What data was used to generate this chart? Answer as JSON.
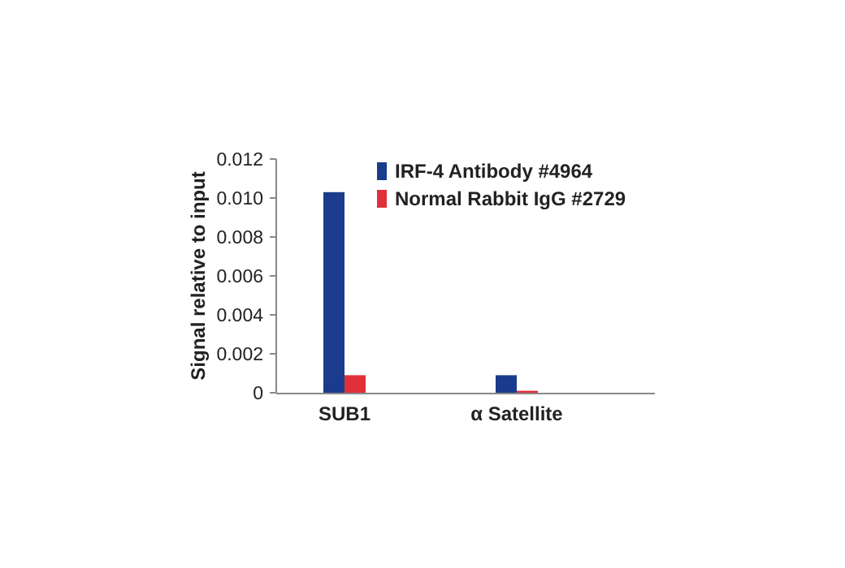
{
  "chart_data": {
    "type": "bar",
    "ylabel": "Signal relative to input",
    "categories": [
      "SUB1",
      "α Satellite"
    ],
    "series": [
      {
        "name": "IRF-4 Antibody #4964",
        "color": "#1b3c8c",
        "values": [
          0.0103,
          0.0009
        ]
      },
      {
        "name": "Normal Rabbit IgG #2729",
        "color": "#e0303a",
        "values": [
          0.0009,
          0.0001
        ]
      }
    ],
    "ylim": [
      0,
      0.012
    ],
    "yticks": [
      {
        "value": 0,
        "label": "0"
      },
      {
        "value": 0.002,
        "label": "0.002"
      },
      {
        "value": 0.004,
        "label": "0.004"
      },
      {
        "value": 0.006,
        "label": "0.006"
      },
      {
        "value": 0.008,
        "label": "0.008"
      },
      {
        "value": 0.01,
        "label": "0.010"
      },
      {
        "value": 0.012,
        "label": "0.012"
      }
    ],
    "legend": "top right",
    "grid": false
  }
}
